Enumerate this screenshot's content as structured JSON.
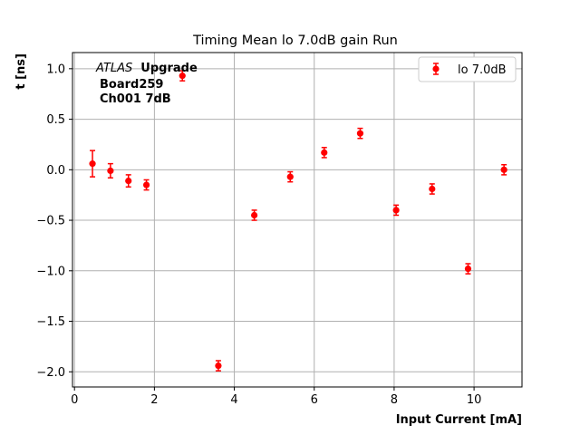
{
  "chart_data": {
    "type": "scatter",
    "title": "Timing Mean lo 7.0dB gain Run",
    "xlabel": "Input Current [mA]",
    "ylabel": "t [ns]",
    "xlim": [
      -0.05,
      11.2
    ],
    "ylim": [
      -2.15,
      1.16
    ],
    "xticks": [
      0,
      2,
      4,
      6,
      8,
      10
    ],
    "xtick_labels": [
      "0",
      "2",
      "4",
      "6",
      "8",
      "10"
    ],
    "yticks": [
      -2.0,
      -1.5,
      -1.0,
      -0.5,
      0.0,
      0.5,
      1.0
    ],
    "ytick_labels": [
      "−2.0",
      "−1.5",
      "−1.0",
      "−0.5",
      "0.0",
      "0.5",
      "1.0"
    ],
    "grid": true,
    "legend_position": "upper-right",
    "annotation": {
      "atlas_italic": "ATLAS",
      "atlas_bold": "Upgrade",
      "line2": "Board259",
      "line3": "Ch001 7dB"
    },
    "series": [
      {
        "name": "lo 7.0dB",
        "color": "#ff0000",
        "marker": "circle",
        "x": [
          0.45,
          0.9,
          1.35,
          1.8,
          2.7,
          3.6,
          4.5,
          5.4,
          6.25,
          7.15,
          8.05,
          8.95,
          9.85,
          10.75
        ],
        "y": [
          0.06,
          -0.01,
          -0.11,
          -0.15,
          0.93,
          -1.94,
          -0.45,
          -0.07,
          0.17,
          0.36,
          -0.4,
          -0.19,
          -0.98,
          0.0
        ],
        "yerr": [
          0.13,
          0.07,
          0.06,
          0.05,
          0.05,
          0.05,
          0.05,
          0.05,
          0.05,
          0.05,
          0.05,
          0.05,
          0.05,
          0.05
        ]
      }
    ]
  }
}
